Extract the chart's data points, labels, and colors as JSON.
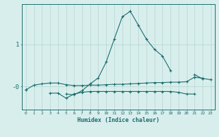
{
  "xlabel": "Humidex (Indice chaleur)",
  "x": [
    0,
    1,
    2,
    3,
    4,
    5,
    6,
    7,
    8,
    9,
    10,
    11,
    12,
    13,
    14,
    15,
    16,
    17,
    18,
    19,
    20,
    21,
    22,
    23
  ],
  "bg_color": "#d8eeed",
  "line_color": "#1a6b6b",
  "grid_color": "#b8d8d4",
  "ylim": [
    -0.55,
    1.95
  ],
  "xlim": [
    -0.5,
    23.5
  ],
  "ytick_vals": [
    -0.0,
    1.0
  ],
  "ytick_labels": [
    "-0",
    "1"
  ],
  "line1_y": [
    -0.08,
    0.03,
    0.06,
    0.08,
    0.08,
    0.04,
    0.02,
    0.02,
    0.03,
    0.03,
    0.04,
    0.05,
    0.05,
    0.06,
    0.07,
    0.08,
    0.09,
    0.09,
    0.1,
    0.1,
    0.11,
    0.22,
    0.19,
    0.16
  ],
  "line2_y": [
    null,
    null,
    null,
    null,
    null,
    -0.18,
    -0.2,
    -0.1,
    0.06,
    0.2,
    0.58,
    1.12,
    1.65,
    1.78,
    1.45,
    1.12,
    0.88,
    0.72,
    0.38,
    null,
    null,
    0.28,
    0.18,
    null
  ],
  "line3_y": [
    -0.08,
    null,
    null,
    -0.16,
    -0.16,
    -0.28,
    -0.18,
    -0.14,
    -0.12,
    -0.12,
    -0.12,
    -0.12,
    -0.12,
    -0.12,
    -0.12,
    -0.12,
    -0.12,
    -0.12,
    -0.12,
    -0.14,
    -0.18,
    -0.18,
    null,
    null
  ]
}
